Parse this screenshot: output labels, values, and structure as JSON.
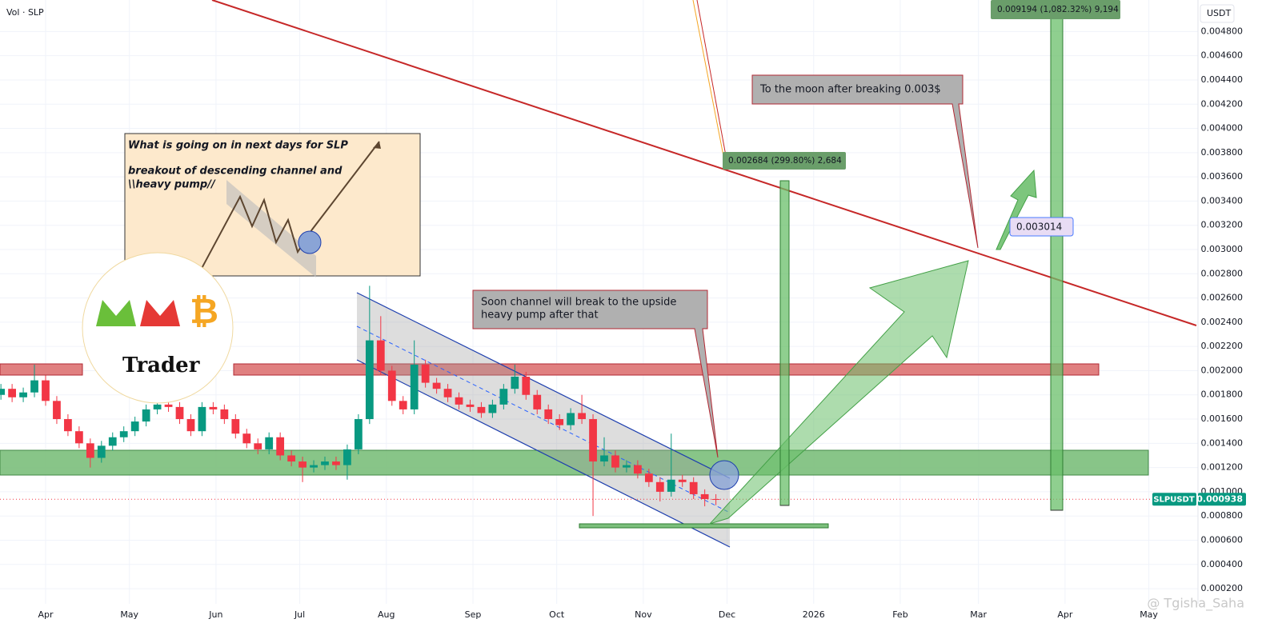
{
  "chart_data": {
    "type": "candlestick",
    "title": "Vol · SLP",
    "y_axis_label": "USDT",
    "up_color": "#089981",
    "down_color": "#f23645",
    "grid": true,
    "xlim": [
      -16.33,
      412.6
    ],
    "ylim": [
      7.5e-05,
      0.00506
    ],
    "xticks": [
      {
        "value": 0,
        "label": "Apr"
      },
      {
        "value": 30,
        "label": "May"
      },
      {
        "value": 61,
        "label": "Jun"
      },
      {
        "value": 91,
        "label": "Jul"
      },
      {
        "value": 122,
        "label": "Aug"
      },
      {
        "value": 153,
        "label": "Sep"
      },
      {
        "value": 183,
        "label": "Oct"
      },
      {
        "value": 214,
        "label": "Nov"
      },
      {
        "value": 244,
        "label": "Dec"
      },
      {
        "value": 275,
        "label": "2026"
      },
      {
        "value": 306,
        "label": "Feb"
      },
      {
        "value": 334,
        "label": "Mar"
      },
      {
        "value": 365,
        "label": "Apr"
      },
      {
        "value": 395,
        "label": "May"
      }
    ],
    "yticks": [
      {
        "value": 0.0002,
        "label": "0.000200"
      },
      {
        "value": 0.0004,
        "label": "0.000400"
      },
      {
        "value": 0.0006,
        "label": "0.000600"
      },
      {
        "value": 0.0008,
        "label": "0.000800"
      },
      {
        "value": 0.001,
        "label": "0.001000"
      },
      {
        "value": 0.0012,
        "label": "0.001200"
      },
      {
        "value": 0.0014,
        "label": "0.001400"
      },
      {
        "value": 0.0016,
        "label": "0.001600"
      },
      {
        "value": 0.0018,
        "label": "0.001800"
      },
      {
        "value": 0.002,
        "label": "0.002000"
      },
      {
        "value": 0.0022,
        "label": "0.002200"
      },
      {
        "value": 0.0024,
        "label": "0.002400"
      },
      {
        "value": 0.0026,
        "label": "0.002600"
      },
      {
        "value": 0.0028,
        "label": "0.002800"
      },
      {
        "value": 0.003,
        "label": "0.003000"
      },
      {
        "value": 0.0032,
        "label": "0.003200"
      },
      {
        "value": 0.0034,
        "label": "0.003400"
      },
      {
        "value": 0.0036,
        "label": "0.003600"
      },
      {
        "value": 0.0038,
        "label": "0.003800"
      },
      {
        "value": 0.004,
        "label": "0.004000"
      },
      {
        "value": 0.0042,
        "label": "0.004200"
      },
      {
        "value": 0.0044,
        "label": "0.004400"
      },
      {
        "value": 0.0046,
        "label": "0.004600"
      },
      {
        "value": 0.0048,
        "label": "0.004800"
      }
    ],
    "x": [
      -16,
      -12,
      -8,
      -4,
      0,
      4,
      8,
      12,
      16,
      20,
      24,
      28,
      32,
      36,
      40,
      44,
      48,
      52,
      56,
      60,
      64,
      68,
      72,
      76,
      80,
      84,
      88,
      92,
      96,
      100,
      104,
      108,
      112,
      116,
      120,
      124,
      128,
      132,
      136,
      140,
      144,
      148,
      152,
      156,
      160,
      164,
      168,
      172,
      176,
      180,
      184,
      188,
      192,
      196,
      200,
      204,
      208,
      212,
      216,
      220,
      224,
      228,
      232,
      236,
      240
    ],
    "open": [
      0.0018,
      0.00185,
      0.00178,
      0.00182,
      0.00192,
      0.00175,
      0.0016,
      0.0015,
      0.0014,
      0.00128,
      0.00138,
      0.00145,
      0.0015,
      0.00158,
      0.00168,
      0.00172,
      0.0017,
      0.0016,
      0.0015,
      0.0017,
      0.00168,
      0.0016,
      0.00148,
      0.0014,
      0.00135,
      0.00145,
      0.0013,
      0.00125,
      0.0012,
      0.00122,
      0.00125,
      0.00122,
      0.00135,
      0.0016,
      0.00225,
      0.002,
      0.00175,
      0.00168,
      0.00205,
      0.0019,
      0.00185,
      0.00178,
      0.00172,
      0.0017,
      0.00165,
      0.00172,
      0.00185,
      0.00195,
      0.0018,
      0.00168,
      0.0016,
      0.00155,
      0.00165,
      0.0016,
      0.00125,
      0.0013,
      0.0012,
      0.00122,
      0.00115,
      0.00108,
      0.001,
      0.0011,
      0.00108,
      0.00098,
      0.00094
    ],
    "high": [
      0.00189,
      0.00189,
      0.00186,
      0.00205,
      0.00196,
      0.00179,
      0.00164,
      0.00154,
      0.00144,
      0.00142,
      0.00149,
      0.00154,
      0.00162,
      0.00172,
      0.00176,
      0.00176,
      0.00174,
      0.00164,
      0.00174,
      0.00174,
      0.00172,
      0.00164,
      0.00152,
      0.00144,
      0.00149,
      0.00149,
      0.00134,
      0.00129,
      0.00126,
      0.00129,
      0.00129,
      0.00139,
      0.00164,
      0.0027,
      0.00245,
      0.00204,
      0.00179,
      0.00225,
      0.00209,
      0.00194,
      0.00189,
      0.00182,
      0.00176,
      0.00174,
      0.00176,
      0.00189,
      0.00205,
      0.00199,
      0.00184,
      0.00172,
      0.00164,
      0.00169,
      0.0018,
      0.00164,
      0.00145,
      0.00134,
      0.00126,
      0.00126,
      0.00119,
      0.00112,
      0.00148,
      0.00114,
      0.00112,
      0.00102,
      0.00098
    ],
    "low": [
      0.00176,
      0.00174,
      0.00174,
      0.00178,
      0.00171,
      0.00156,
      0.00146,
      0.00136,
      0.0012,
      0.00124,
      0.00134,
      0.00141,
      0.00146,
      0.00154,
      0.00164,
      0.00166,
      0.00156,
      0.00146,
      0.00146,
      0.00164,
      0.00156,
      0.00144,
      0.00136,
      0.00131,
      0.00131,
      0.00126,
      0.00121,
      0.00108,
      0.00116,
      0.00118,
      0.00118,
      0.0011,
      0.00131,
      0.00156,
      0.00196,
      0.00171,
      0.00164,
      0.00164,
      0.00186,
      0.00181,
      0.00174,
      0.00168,
      0.00166,
      0.00161,
      0.00161,
      0.00168,
      0.00181,
      0.00176,
      0.00164,
      0.00156,
      0.00151,
      0.00151,
      0.00156,
      0.0008,
      0.00121,
      0.00116,
      0.00116,
      0.00111,
      0.00104,
      0.00092,
      0.00096,
      0.00104,
      0.00094,
      0.00088,
      0.00089
    ],
    "close": [
      0.00185,
      0.00178,
      0.00182,
      0.00192,
      0.00175,
      0.0016,
      0.0015,
      0.0014,
      0.00128,
      0.00138,
      0.00145,
      0.0015,
      0.00158,
      0.00168,
      0.00172,
      0.0017,
      0.0016,
      0.0015,
      0.0017,
      0.00168,
      0.0016,
      0.00148,
      0.0014,
      0.00135,
      0.00145,
      0.0013,
      0.00125,
      0.0012,
      0.00122,
      0.00125,
      0.00122,
      0.00135,
      0.0016,
      0.00225,
      0.002,
      0.00175,
      0.00168,
      0.00205,
      0.0019,
      0.00185,
      0.00178,
      0.00172,
      0.0017,
      0.00165,
      0.00172,
      0.00185,
      0.00195,
      0.0018,
      0.00168,
      0.0016,
      0.00155,
      0.00165,
      0.0016,
      0.00125,
      0.0013,
      0.0012,
      0.00122,
      0.00115,
      0.00108,
      0.001,
      0.0011,
      0.00108,
      0.00098,
      0.00094,
      0.000938
    ],
    "last_price": {
      "symbol": "SLPUSDT",
      "value": 0.000938
    },
    "annotations": {
      "note": [
        "What is going on in next days for SLP",
        "breakout of descending channel and",
        "\\\\heavy pump//"
      ],
      "channel_callout": [
        "Soon channel will break to the upside",
        "heavy pump after that"
      ],
      "moon_callout": "To the moon after breaking 0.003$",
      "measure_1": "0.002684 (299.80%) 2,684",
      "measure_2": "0.009194 (1,082.32%) 9,194",
      "price_label": 0.003014,
      "logo": "Trader",
      "watermark": "@ Tgisha_Saha"
    }
  }
}
